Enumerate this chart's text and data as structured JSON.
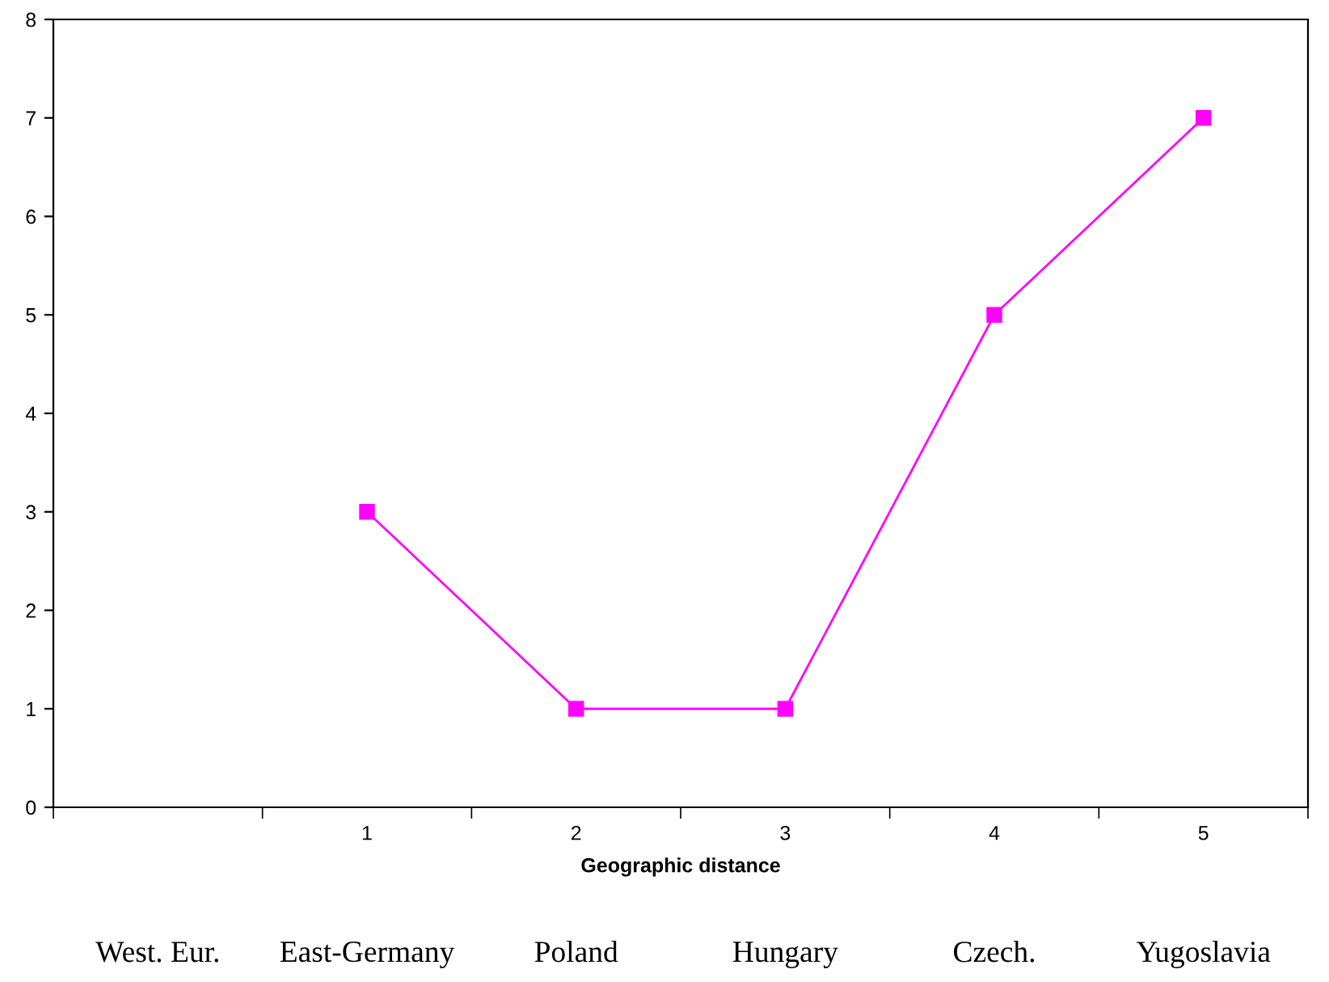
{
  "chart_data": {
    "type": "line",
    "categories": [
      null,
      "1",
      "2",
      "3",
      "4",
      "5"
    ],
    "values": [
      null,
      3,
      1,
      1,
      5,
      7
    ],
    "color": "#ff00ff",
    "marker": "square",
    "line_style": "solid",
    "xlabel": "Geographic distance",
    "ylim": [
      0,
      8
    ],
    "yticks": [
      0,
      1,
      2,
      3,
      4,
      5,
      6,
      7,
      8
    ],
    "grid": false,
    "legend": false,
    "annotations": [
      "West. Eur.",
      "East-Germany",
      "Poland",
      "Hungary",
      "Czech.",
      "Yugoslavia"
    ]
  }
}
